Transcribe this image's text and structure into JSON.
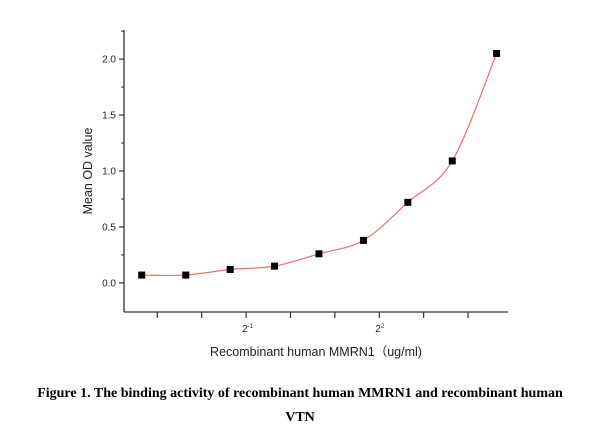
{
  "chart_data": {
    "type": "scatter",
    "xscale": "log2",
    "x": [
      0.098,
      0.195,
      0.39,
      0.78,
      1.56,
      3.125,
      6.25,
      12.5,
      25
    ],
    "y": [
      0.07,
      0.07,
      0.12,
      0.15,
      0.26,
      0.38,
      0.72,
      1.09,
      2.05
    ],
    "fit_curve": true,
    "fit_color": "#e87070",
    "marker_color": "#000000",
    "xlabel": "Recombinant human  MMRN1（ug/ml)",
    "ylabel": "Mean OD value",
    "xlim_log2": [
      -3.75,
      4.9
    ],
    "ylim": [
      -0.26,
      2.26
    ],
    "yticks": [
      0.0,
      0.5,
      1.0,
      1.5,
      2.0
    ],
    "ytick_labels": [
      "0.0",
      "0.5",
      "1.0",
      "1.5",
      "2.0"
    ],
    "xticks_log2": [
      -3,
      -2,
      -1,
      0,
      1,
      2,
      3,
      4
    ],
    "xtick_labels": [
      {
        "exp": -1,
        "base": "2",
        "sup": "-1"
      },
      {
        "exp": 2,
        "base": "2",
        "sup": "2"
      }
    ],
    "grid": false,
    "legend": "none"
  },
  "caption": {
    "line1": "Figure 1. The binding activity of recombinant human MMRN1 and recombinant human",
    "line2": "VTN"
  }
}
